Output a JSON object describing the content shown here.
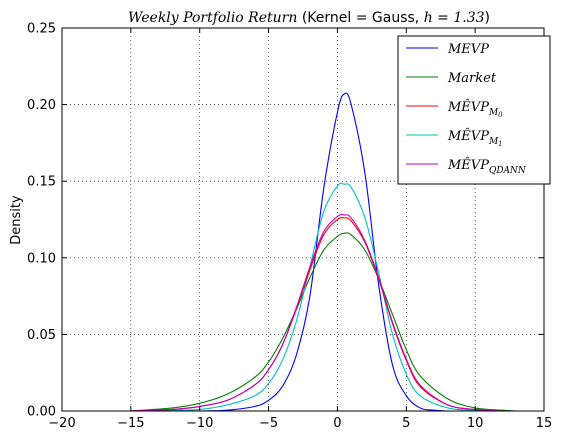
{
  "chart_data": {
    "type": "line",
    "title": {
      "italic": "Weekly Portfolio Return",
      "middle": " (Kernel = Gauss, ",
      "h_label": "h = 1.33",
      "end": ")"
    },
    "xlabel": "",
    "ylabel": "Density",
    "xlim": [
      -20,
      15
    ],
    "ylim": [
      0,
      0.25
    ],
    "xticks": [
      -20,
      -15,
      -10,
      -5,
      0,
      5,
      10,
      15
    ],
    "yticks": [
      0.0,
      0.05,
      0.1,
      0.15,
      0.2,
      0.25
    ],
    "xtick_labels": [
      "−20",
      "−15",
      "−10",
      "−5",
      "0",
      "5",
      "10",
      "15"
    ],
    "ytick_labels": [
      "0.00",
      "0.05",
      "0.10",
      "0.15",
      "0.20",
      "0.25"
    ],
    "grid": true,
    "legend_position": "top-right",
    "series": [
      {
        "name": "MEVP",
        "color": "#0000ff",
        "x": [
          -10,
          -8,
          -6,
          -5,
          -4,
          -3,
          -2,
          -1,
          0,
          0.5,
          1,
          2,
          3,
          4,
          5,
          6,
          7,
          8
        ],
        "y": [
          0.0,
          0.0005,
          0.003,
          0.007,
          0.016,
          0.036,
          0.075,
          0.145,
          0.195,
          0.207,
          0.2,
          0.155,
          0.082,
          0.03,
          0.01,
          0.002,
          0.0005,
          0.0
        ]
      },
      {
        "name": "Market",
        "color": "#008000",
        "x": [
          -15,
          -12,
          -10,
          -8,
          -6,
          -5,
          -4,
          -3,
          -2,
          -1,
          0,
          0.5,
          1,
          2,
          3,
          4,
          5,
          6,
          8,
          10,
          12,
          13
        ],
        "y": [
          0.0,
          0.002,
          0.005,
          0.011,
          0.022,
          0.032,
          0.047,
          0.066,
          0.087,
          0.105,
          0.114,
          0.116,
          0.115,
          0.105,
          0.086,
          0.063,
          0.04,
          0.023,
          0.008,
          0.002,
          0.0005,
          0.0
        ]
      },
      {
        "name": "MEVP_M0",
        "color": "#ff0000",
        "x": [
          -15,
          -12,
          -10,
          -8,
          -6,
          -5,
          -4,
          -3,
          -2,
          -1,
          0,
          0.5,
          1,
          2,
          3,
          4,
          5,
          6,
          8,
          10,
          12,
          13
        ],
        "y": [
          0.0,
          0.001,
          0.003,
          0.007,
          0.017,
          0.027,
          0.043,
          0.066,
          0.092,
          0.115,
          0.125,
          0.126,
          0.124,
          0.11,
          0.086,
          0.057,
          0.033,
          0.016,
          0.004,
          0.001,
          0.0,
          0.0
        ]
      },
      {
        "name": "MEVP_M1",
        "color": "#00bfbf",
        "x": [
          -15,
          -12,
          -10,
          -8,
          -6,
          -5,
          -4,
          -3,
          -2,
          -1,
          0,
          0.5,
          1,
          2,
          3,
          4,
          5,
          6,
          8,
          10,
          12
        ],
        "y": [
          0.0,
          0.0005,
          0.001,
          0.004,
          0.01,
          0.018,
          0.033,
          0.058,
          0.094,
          0.13,
          0.147,
          0.148,
          0.146,
          0.126,
          0.09,
          0.05,
          0.024,
          0.01,
          0.002,
          0.0005,
          0.0
        ]
      },
      {
        "name": "MEVP_QDANN",
        "color": "#bf00bf",
        "x": [
          -15,
          -12,
          -10,
          -8,
          -6,
          -5,
          -4,
          -3,
          -2,
          -1,
          0,
          0.5,
          1,
          2,
          3,
          4,
          5,
          6,
          8,
          10,
          12,
          13
        ],
        "y": [
          0.0,
          0.001,
          0.003,
          0.007,
          0.017,
          0.027,
          0.043,
          0.067,
          0.094,
          0.117,
          0.127,
          0.128,
          0.126,
          0.111,
          0.087,
          0.058,
          0.034,
          0.017,
          0.004,
          0.001,
          0.0,
          0.0
        ]
      }
    ]
  }
}
